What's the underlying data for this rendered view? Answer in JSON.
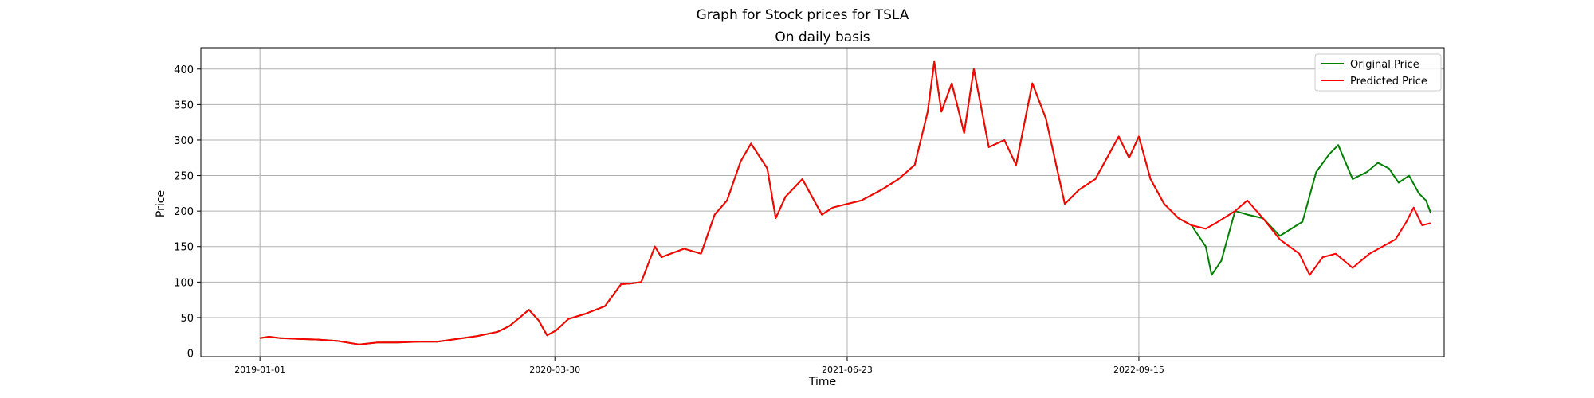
{
  "figure": {
    "suptitle": "Graph for Stock prices for TSLA"
  },
  "chart_data": {
    "type": "line",
    "title": "On daily basis",
    "xlabel": "Time",
    "ylabel": "Price",
    "x_type": "date",
    "xlim": [
      "2018-10-02",
      "2023-12-29"
    ],
    "ylim": [
      -5,
      430
    ],
    "xticks": [
      "2019-01-01",
      "2020-03-30",
      "2021-06-23",
      "2022-09-15"
    ],
    "yticks": [
      0,
      50,
      100,
      150,
      200,
      250,
      300,
      350,
      400
    ],
    "grid": true,
    "legend_position": "top-right",
    "series": [
      {
        "name": "Original Price",
        "color": "#008000",
        "points": [
          [
            "2019-01-01",
            21
          ],
          [
            "2019-01-15",
            23
          ],
          [
            "2019-02-01",
            21
          ],
          [
            "2019-03-01",
            20
          ],
          [
            "2019-04-01",
            19
          ],
          [
            "2019-05-01",
            17
          ],
          [
            "2019-06-03",
            12
          ],
          [
            "2019-07-01",
            15
          ],
          [
            "2019-08-01",
            15
          ],
          [
            "2019-09-03",
            16
          ],
          [
            "2019-10-01",
            16
          ],
          [
            "2019-11-01",
            20
          ],
          [
            "2019-12-02",
            24
          ],
          [
            "2020-01-02",
            30
          ],
          [
            "2020-01-20",
            38
          ],
          [
            "2020-02-05",
            50
          ],
          [
            "2020-02-19",
            61
          ],
          [
            "2020-03-05",
            46
          ],
          [
            "2020-03-18",
            25
          ],
          [
            "2020-04-01",
            32
          ],
          [
            "2020-04-20",
            48
          ],
          [
            "2020-05-15",
            55
          ],
          [
            "2020-06-15",
            66
          ],
          [
            "2020-07-10",
            97
          ],
          [
            "2020-07-25",
            98
          ],
          [
            "2020-08-10",
            100
          ],
          [
            "2020-08-31",
            150
          ],
          [
            "2020-09-10",
            135
          ],
          [
            "2020-10-15",
            147
          ],
          [
            "2020-11-10",
            140
          ],
          [
            "2020-12-01",
            195
          ],
          [
            "2020-12-20",
            215
          ],
          [
            "2021-01-10",
            270
          ],
          [
            "2021-01-26",
            295
          ],
          [
            "2021-02-20",
            260
          ],
          [
            "2021-03-05",
            190
          ],
          [
            "2021-03-20",
            220
          ],
          [
            "2021-04-15",
            245
          ],
          [
            "2021-05-15",
            195
          ],
          [
            "2021-06-01",
            205
          ],
          [
            "2021-06-23",
            210
          ],
          [
            "2021-07-15",
            215
          ],
          [
            "2021-08-15",
            230
          ],
          [
            "2021-09-10",
            245
          ],
          [
            "2021-10-05",
            265
          ],
          [
            "2021-10-25",
            340
          ],
          [
            "2021-11-04",
            410
          ],
          [
            "2021-11-15",
            340
          ],
          [
            "2021-12-01",
            380
          ],
          [
            "2021-12-20",
            310
          ],
          [
            "2022-01-04",
            400
          ],
          [
            "2022-01-27",
            290
          ],
          [
            "2022-02-20",
            300
          ],
          [
            "2022-03-10",
            265
          ],
          [
            "2022-04-04",
            380
          ],
          [
            "2022-04-25",
            330
          ],
          [
            "2022-05-24",
            210
          ],
          [
            "2022-06-15",
            230
          ],
          [
            "2022-07-10",
            245
          ],
          [
            "2022-08-15",
            305
          ],
          [
            "2022-08-31",
            275
          ],
          [
            "2022-09-15",
            305
          ],
          [
            "2022-10-03",
            245
          ],
          [
            "2022-10-24",
            210
          ],
          [
            "2022-11-15",
            190
          ],
          [
            "2022-12-05",
            180
          ],
          [
            "2022-12-27",
            150
          ],
          [
            "2023-01-05",
            110
          ],
          [
            "2023-01-20",
            130
          ],
          [
            "2023-02-10",
            200
          ],
          [
            "2023-03-01",
            195
          ],
          [
            "2023-03-25",
            190
          ],
          [
            "2023-04-20",
            165
          ],
          [
            "2023-05-25",
            185
          ],
          [
            "2023-06-15",
            255
          ],
          [
            "2023-07-05",
            280
          ],
          [
            "2023-07-19",
            293
          ],
          [
            "2023-08-10",
            245
          ],
          [
            "2023-09-01",
            255
          ],
          [
            "2023-09-18",
            268
          ],
          [
            "2023-10-05",
            260
          ],
          [
            "2023-10-20",
            240
          ],
          [
            "2023-11-05",
            250
          ],
          [
            "2023-11-20",
            225
          ],
          [
            "2023-12-01",
            215
          ],
          [
            "2023-12-08",
            198
          ]
        ]
      },
      {
        "name": "Predicted Price",
        "color": "#ff0000",
        "points": [
          [
            "2019-01-01",
            21
          ],
          [
            "2019-01-15",
            23
          ],
          [
            "2019-02-01",
            21
          ],
          [
            "2019-03-01",
            20
          ],
          [
            "2019-04-01",
            19
          ],
          [
            "2019-05-01",
            17
          ],
          [
            "2019-06-03",
            12
          ],
          [
            "2019-07-01",
            15
          ],
          [
            "2019-08-01",
            15
          ],
          [
            "2019-09-03",
            16
          ],
          [
            "2019-10-01",
            16
          ],
          [
            "2019-11-01",
            20
          ],
          [
            "2019-12-02",
            24
          ],
          [
            "2020-01-02",
            30
          ],
          [
            "2020-01-20",
            38
          ],
          [
            "2020-02-05",
            50
          ],
          [
            "2020-02-19",
            61
          ],
          [
            "2020-03-05",
            46
          ],
          [
            "2020-03-18",
            25
          ],
          [
            "2020-04-01",
            32
          ],
          [
            "2020-04-20",
            48
          ],
          [
            "2020-05-15",
            55
          ],
          [
            "2020-06-15",
            66
          ],
          [
            "2020-07-10",
            97
          ],
          [
            "2020-07-25",
            98
          ],
          [
            "2020-08-10",
            100
          ],
          [
            "2020-08-31",
            150
          ],
          [
            "2020-09-10",
            135
          ],
          [
            "2020-10-15",
            147
          ],
          [
            "2020-11-10",
            140
          ],
          [
            "2020-12-01",
            195
          ],
          [
            "2020-12-20",
            215
          ],
          [
            "2021-01-10",
            270
          ],
          [
            "2021-01-26",
            295
          ],
          [
            "2021-02-20",
            260
          ],
          [
            "2021-03-05",
            190
          ],
          [
            "2021-03-20",
            220
          ],
          [
            "2021-04-15",
            245
          ],
          [
            "2021-05-15",
            195
          ],
          [
            "2021-06-01",
            205
          ],
          [
            "2021-06-23",
            210
          ],
          [
            "2021-07-15",
            215
          ],
          [
            "2021-08-15",
            230
          ],
          [
            "2021-09-10",
            245
          ],
          [
            "2021-10-05",
            265
          ],
          [
            "2021-10-25",
            340
          ],
          [
            "2021-11-04",
            410
          ],
          [
            "2021-11-15",
            340
          ],
          [
            "2021-12-01",
            380
          ],
          [
            "2021-12-20",
            310
          ],
          [
            "2022-01-04",
            400
          ],
          [
            "2022-01-27",
            290
          ],
          [
            "2022-02-20",
            300
          ],
          [
            "2022-03-10",
            265
          ],
          [
            "2022-04-04",
            380
          ],
          [
            "2022-04-25",
            330
          ],
          [
            "2022-05-24",
            210
          ],
          [
            "2022-06-15",
            230
          ],
          [
            "2022-07-10",
            245
          ],
          [
            "2022-08-15",
            305
          ],
          [
            "2022-08-31",
            275
          ],
          [
            "2022-09-15",
            305
          ],
          [
            "2022-10-03",
            245
          ],
          [
            "2022-10-24",
            210
          ],
          [
            "2022-11-15",
            190
          ],
          [
            "2022-12-05",
            180
          ],
          [
            "2022-12-27",
            175
          ],
          [
            "2023-01-15",
            185
          ],
          [
            "2023-02-10",
            200
          ],
          [
            "2023-03-01",
            215
          ],
          [
            "2023-03-25",
            190
          ],
          [
            "2023-04-20",
            160
          ],
          [
            "2023-05-20",
            140
          ],
          [
            "2023-06-05",
            110
          ],
          [
            "2023-06-25",
            135
          ],
          [
            "2023-07-15",
            140
          ],
          [
            "2023-08-10",
            120
          ],
          [
            "2023-09-05",
            140
          ],
          [
            "2023-09-25",
            150
          ],
          [
            "2023-10-15",
            160
          ],
          [
            "2023-11-01",
            185
          ],
          [
            "2023-11-12",
            205
          ],
          [
            "2023-11-25",
            180
          ],
          [
            "2023-12-08",
            183
          ]
        ]
      }
    ]
  }
}
